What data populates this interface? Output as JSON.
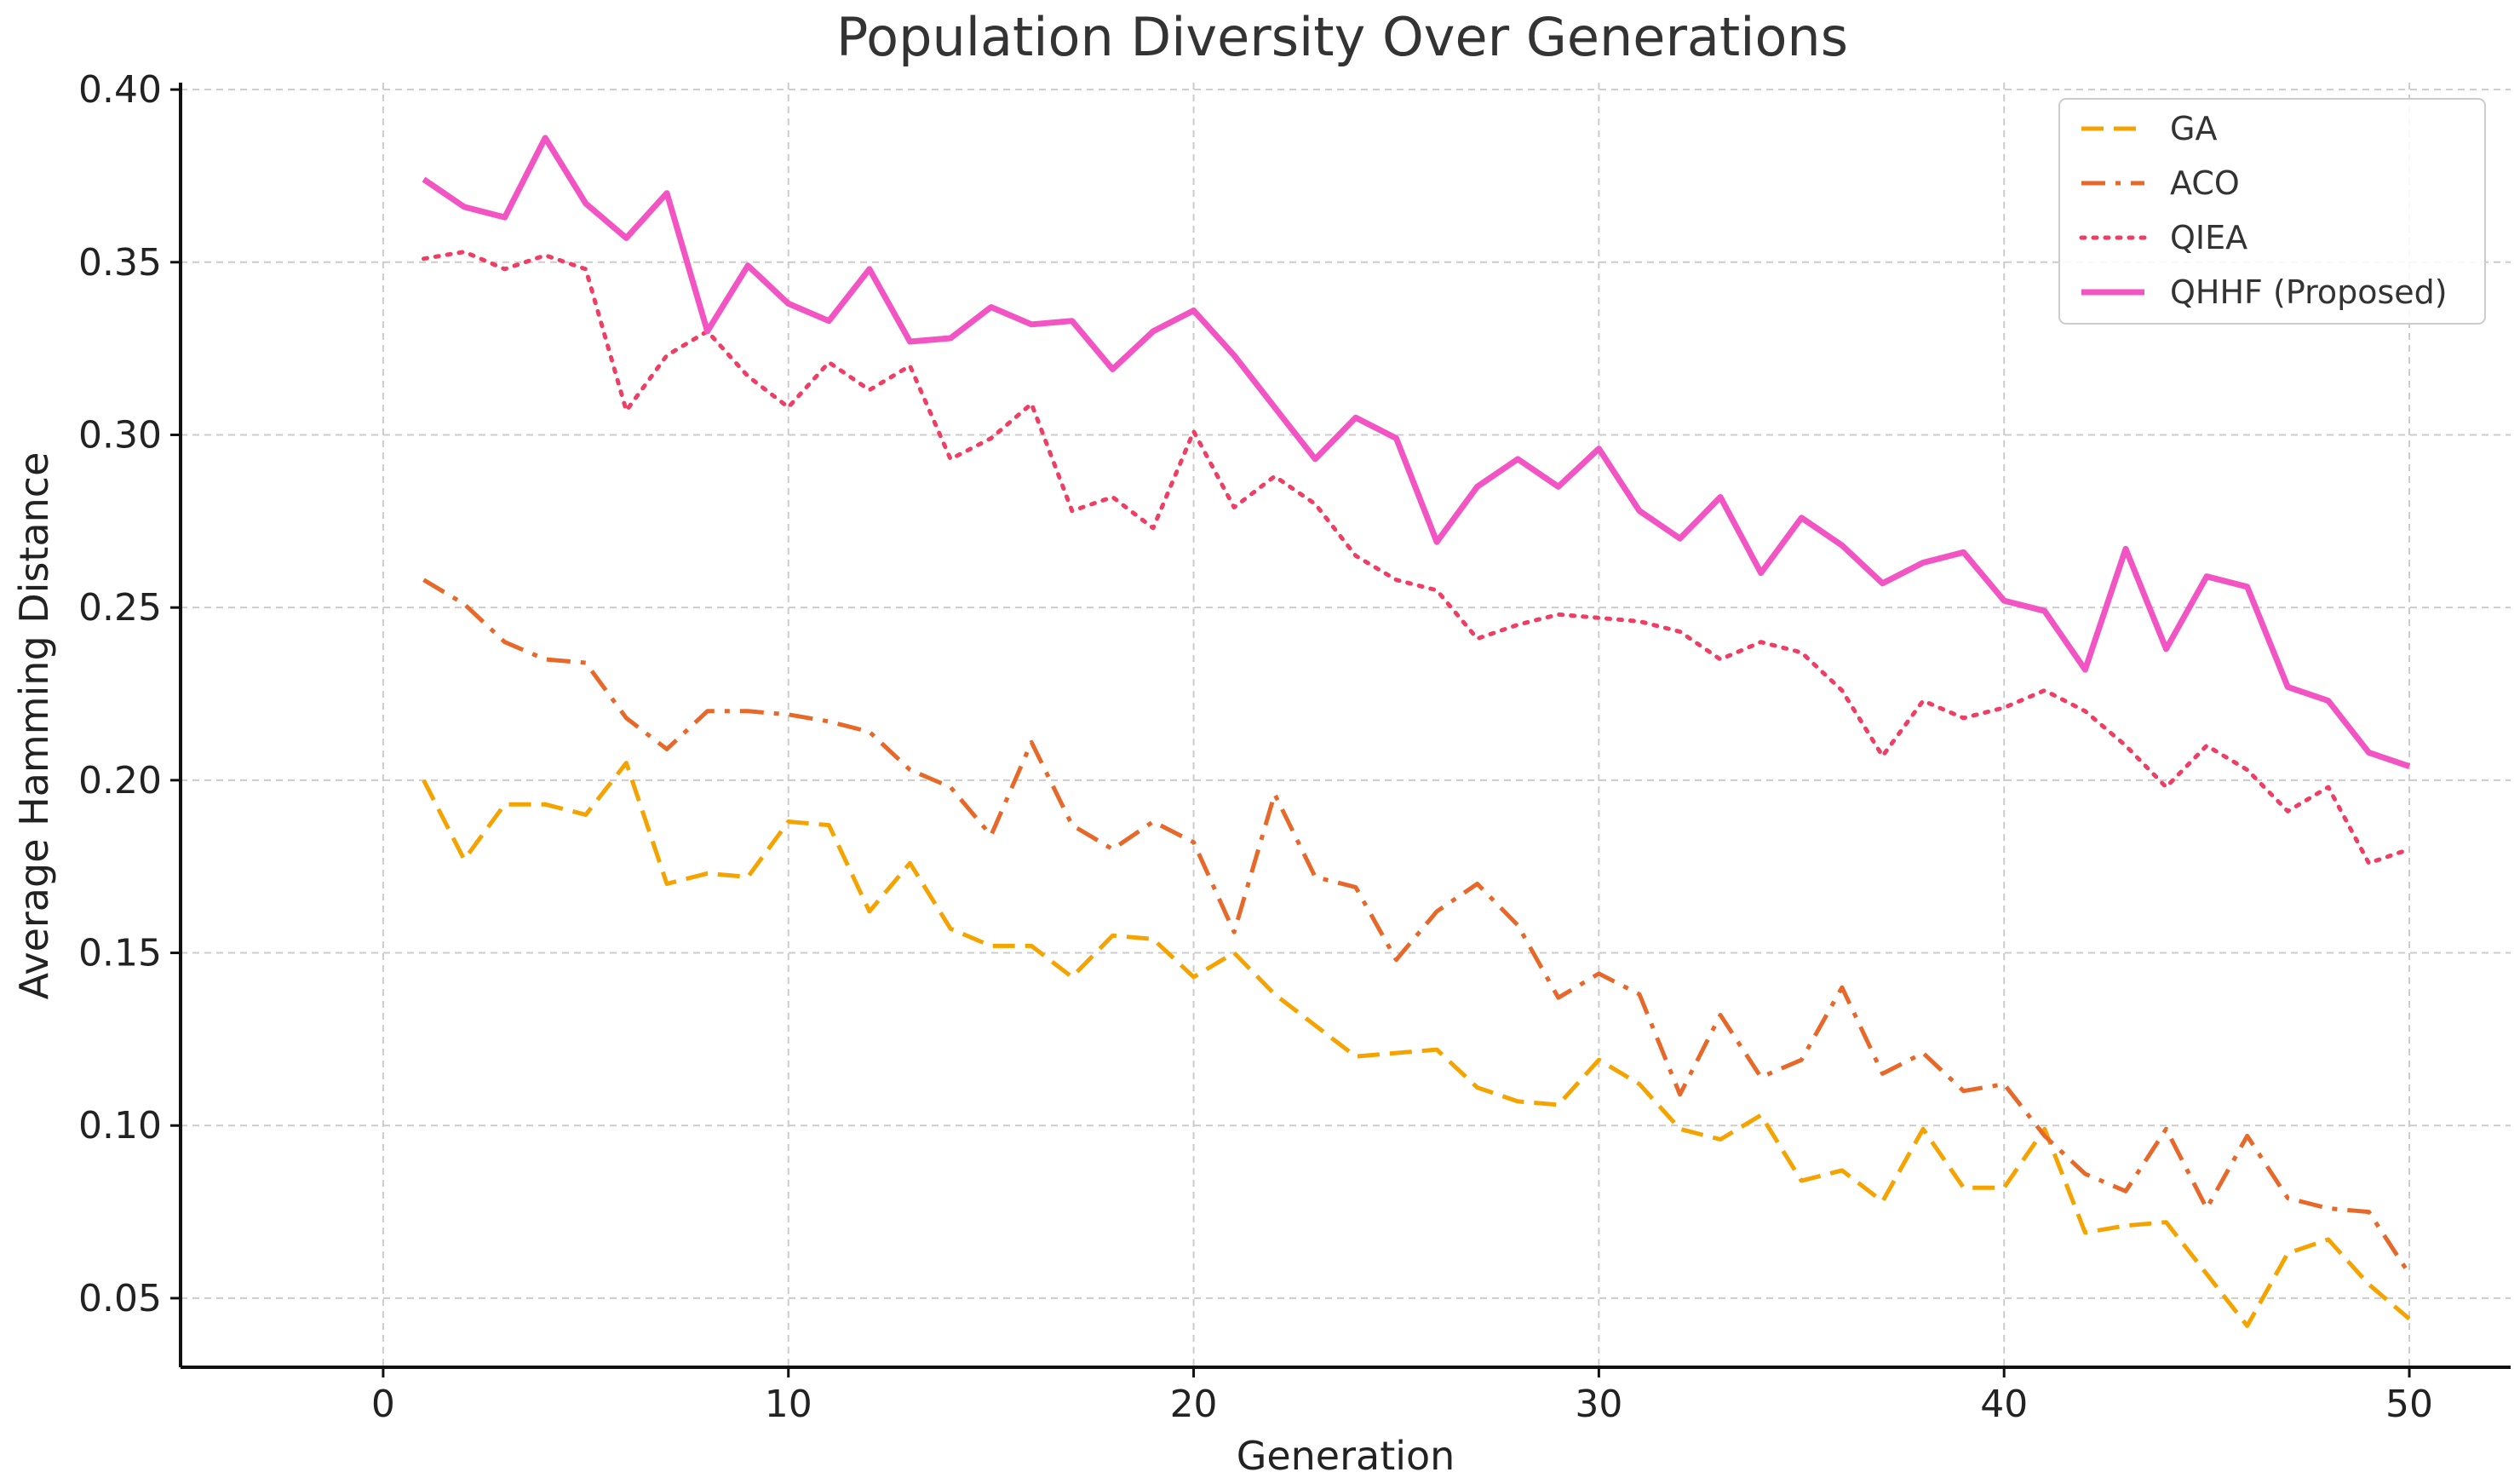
{
  "chart_data": {
    "type": "line",
    "title": "Population Diversity Over Generations",
    "xlabel": "Generation",
    "ylabel": "Average Hamming Distance",
    "xlim": [
      -5,
      52.5
    ],
    "ylim": [
      0.03,
      0.402
    ],
    "xticks": [
      0,
      10,
      20,
      30,
      40,
      50
    ],
    "xtick_labels": [
      "0",
      "10",
      "20",
      "30",
      "40",
      "50"
    ],
    "yticks": [
      0.05,
      0.1,
      0.15,
      0.2,
      0.25,
      0.3,
      0.35,
      0.4
    ],
    "ytick_labels": [
      "0.05",
      "0.10",
      "0.15",
      "0.20",
      "0.25",
      "0.30",
      "0.35",
      "0.40"
    ],
    "grid": true,
    "legend_position": "top-right",
    "x": [
      1,
      2,
      3,
      4,
      5,
      6,
      7,
      8,
      9,
      10,
      11,
      12,
      13,
      14,
      15,
      16,
      17,
      18,
      19,
      20,
      21,
      22,
      23,
      24,
      25,
      26,
      27,
      28,
      29,
      30,
      31,
      32,
      33,
      34,
      35,
      36,
      37,
      38,
      39,
      40,
      41,
      42,
      43,
      44,
      45,
      46,
      47,
      48,
      49,
      50
    ],
    "series": [
      {
        "name": "GA",
        "color": "#f5a300",
        "style": "dashed",
        "values": [
          0.2,
          0.177,
          0.193,
          0.193,
          0.19,
          0.205,
          0.17,
          0.173,
          0.172,
          0.188,
          0.187,
          0.162,
          0.176,
          0.157,
          0.152,
          0.152,
          0.143,
          0.155,
          0.154,
          0.143,
          0.15,
          0.138,
          0.129,
          0.12,
          0.121,
          0.122,
          0.111,
          0.107,
          0.106,
          0.119,
          0.112,
          0.099,
          0.096,
          0.103,
          0.084,
          0.087,
          0.078,
          0.099,
          0.082,
          0.082,
          0.099,
          0.069,
          0.071,
          0.072,
          0.057,
          0.042,
          0.063,
          0.067,
          0.054,
          0.044
        ]
      },
      {
        "name": "ACO",
        "color": "#e8682a",
        "style": "dashdot",
        "values": [
          0.258,
          0.251,
          0.24,
          0.235,
          0.234,
          0.218,
          0.209,
          0.22,
          0.22,
          0.219,
          0.217,
          0.214,
          0.203,
          0.198,
          0.184,
          0.211,
          0.187,
          0.18,
          0.188,
          0.182,
          0.156,
          0.196,
          0.172,
          0.169,
          0.148,
          0.162,
          0.17,
          0.158,
          0.137,
          0.144,
          0.138,
          0.109,
          0.132,
          0.114,
          0.119,
          0.14,
          0.115,
          0.121,
          0.11,
          0.112,
          0.097,
          0.086,
          0.081,
          0.099,
          0.076,
          0.097,
          0.079,
          0.076,
          0.075,
          0.057
        ]
      },
      {
        "name": "QIEA",
        "color": "#f03d63",
        "style": "dotted",
        "values": [
          0.351,
          0.353,
          0.348,
          0.352,
          0.348,
          0.307,
          0.323,
          0.33,
          0.317,
          0.308,
          0.321,
          0.313,
          0.32,
          0.293,
          0.299,
          0.309,
          0.278,
          0.282,
          0.273,
          0.301,
          0.279,
          0.288,
          0.28,
          0.265,
          0.258,
          0.255,
          0.241,
          0.245,
          0.248,
          0.247,
          0.246,
          0.243,
          0.235,
          0.24,
          0.237,
          0.226,
          0.207,
          0.223,
          0.218,
          0.221,
          0.226,
          0.22,
          0.21,
          0.198,
          0.21,
          0.203,
          0.191,
          0.198,
          0.176,
          0.18
        ]
      },
      {
        "name": "QHHF (Proposed)",
        "color": "#f254c3",
        "style": "solid",
        "values": [
          0.374,
          0.366,
          0.363,
          0.386,
          0.367,
          0.357,
          0.37,
          0.33,
          0.349,
          0.338,
          0.333,
          0.348,
          0.327,
          0.328,
          0.337,
          0.332,
          0.333,
          0.319,
          0.33,
          0.336,
          0.323,
          0.308,
          0.293,
          0.305,
          0.299,
          0.269,
          0.285,
          0.293,
          0.285,
          0.296,
          0.278,
          0.27,
          0.282,
          0.26,
          0.276,
          0.268,
          0.257,
          0.263,
          0.266,
          0.252,
          0.249,
          0.232,
          0.267,
          0.238,
          0.259,
          0.256,
          0.227,
          0.223,
          0.208,
          0.204
        ]
      }
    ]
  }
}
